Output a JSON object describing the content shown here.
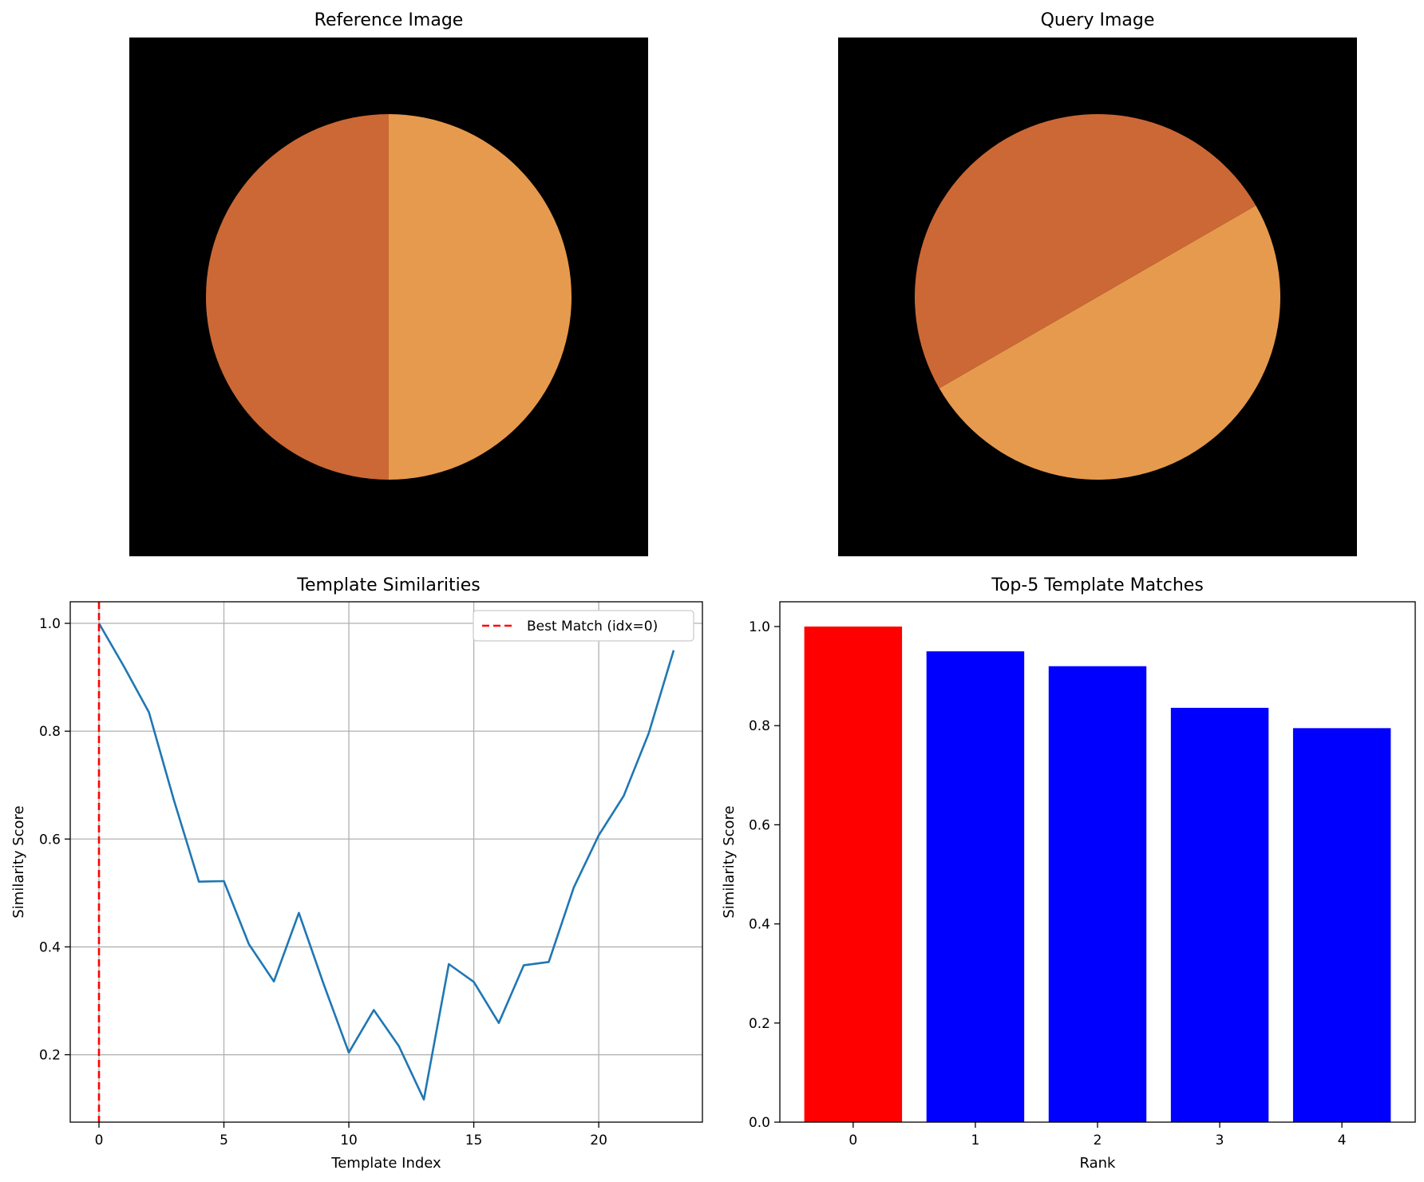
{
  "colors": {
    "image_background": "#000000",
    "disc_dark": "#cc6835",
    "disc_light": "#e69a4e",
    "line": "#1f77b4",
    "best_match_line": "#ff0000",
    "bar_best": "#ff0000",
    "bar_other": "#0000ff"
  },
  "chart_data": [
    {
      "type": "image",
      "title": "Reference Image",
      "description_values": {
        "split_angle_deg": 90
      }
    },
    {
      "type": "image",
      "title": "Query Image",
      "description_values": {
        "split_angle_deg": 30
      }
    },
    {
      "type": "line",
      "title": "Template Similarities",
      "xlabel": "Template Index",
      "ylabel": "Similarity Score",
      "xlim": [
        -1.15,
        24.15
      ],
      "ylim": [
        0.075,
        1.04
      ],
      "xticks": [
        0,
        5,
        10,
        15,
        20
      ],
      "yticks": [
        0.2,
        0.4,
        0.6,
        0.8,
        1.0
      ],
      "grid": true,
      "x": [
        0,
        1,
        2,
        3,
        4,
        5,
        6,
        7,
        8,
        9,
        10,
        11,
        12,
        13,
        14,
        15,
        16,
        17,
        18,
        19,
        20,
        21,
        22,
        23
      ],
      "series": [
        {
          "values": [
            1.0,
            0.92,
            0.835,
            0.672,
            0.521,
            0.522,
            0.405,
            0.336,
            0.463,
            0.33,
            0.204,
            0.283,
            0.216,
            0.117,
            0.368,
            0.335,
            0.259,
            0.366,
            0.372,
            0.51,
            0.607,
            0.68,
            0.796,
            0.95
          ]
        }
      ],
      "vline": {
        "x": 0,
        "label": "Best Match (idx=0)"
      },
      "legend": "top-right"
    },
    {
      "type": "bar",
      "title": "Top-5 Template Matches",
      "xlabel": "Rank",
      "ylabel": "Similarity Score",
      "categories": [
        "0",
        "1",
        "2",
        "3",
        "4"
      ],
      "values": [
        1.0,
        0.95,
        0.92,
        0.836,
        0.795
      ],
      "ylim": [
        0,
        1.05
      ],
      "yticks": [
        0.0,
        0.2,
        0.4,
        0.6,
        0.8,
        1.0
      ],
      "grid": false
    }
  ]
}
